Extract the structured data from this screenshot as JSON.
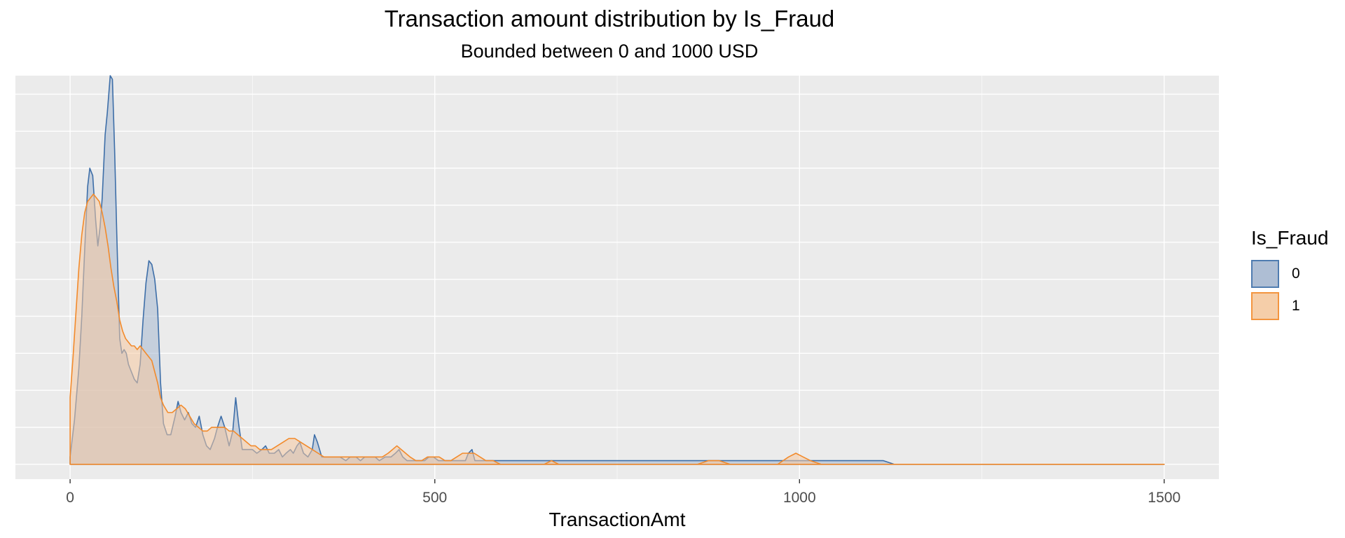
{
  "chart_data": {
    "type": "area",
    "title": "Transaction amount distribution by Is_Fraud",
    "subtitle": "Bounded between 0 and 1000 USD",
    "xlabel": "TransactionAmt",
    "ylabel": "",
    "xlim": [
      -75,
      1575
    ],
    "ylim": [
      -0.0004,
      0.0105
    ],
    "x_ticks": [
      0,
      500,
      1000,
      1500
    ],
    "y_ticks_shown": false,
    "grid": true,
    "legend": {
      "title": "Is_Fraud",
      "position": "right"
    },
    "series": [
      {
        "name": "0",
        "stroke": "#3d6ea8",
        "fill": "#a6b8d0",
        "points": [
          [
            0,
            0.0002
          ],
          [
            6,
            0.0012
          ],
          [
            12,
            0.0026
          ],
          [
            16,
            0.004
          ],
          [
            20,
            0.0058
          ],
          [
            24,
            0.0075
          ],
          [
            27,
            0.008
          ],
          [
            31,
            0.0078
          ],
          [
            35,
            0.0066
          ],
          [
            38,
            0.0059
          ],
          [
            41,
            0.0064
          ],
          [
            44,
            0.0072
          ],
          [
            48,
            0.0089
          ],
          [
            51,
            0.0095
          ],
          [
            55,
            0.0105
          ],
          [
            58,
            0.0104
          ],
          [
            61,
            0.0085
          ],
          [
            64,
            0.0062
          ],
          [
            68,
            0.0034
          ],
          [
            71,
            0.003
          ],
          [
            74,
            0.0031
          ],
          [
            77,
            0.003
          ],
          [
            80,
            0.0027
          ],
          [
            84,
            0.0025
          ],
          [
            88,
            0.0023
          ],
          [
            92,
            0.0022
          ],
          [
            96,
            0.0027
          ],
          [
            100,
            0.0039
          ],
          [
            104,
            0.0049
          ],
          [
            108,
            0.0055
          ],
          [
            112,
            0.0054
          ],
          [
            116,
            0.005
          ],
          [
            120,
            0.0042
          ],
          [
            124,
            0.0022
          ],
          [
            128,
            0.0011
          ],
          [
            133,
            0.0008
          ],
          [
            138,
            0.0008
          ],
          [
            144,
            0.0013
          ],
          [
            148,
            0.0017
          ],
          [
            152,
            0.0014
          ],
          [
            157,
            0.0012
          ],
          [
            162,
            0.0014
          ],
          [
            167,
            0.0011
          ],
          [
            172,
            0.001
          ],
          [
            177,
            0.0013
          ],
          [
            182,
            0.0008
          ],
          [
            187,
            0.0005
          ],
          [
            192,
            0.0004
          ],
          [
            198,
            0.0007
          ],
          [
            202,
            0.001
          ],
          [
            207,
            0.0013
          ],
          [
            212,
            0.001
          ],
          [
            218,
            0.0005
          ],
          [
            223,
            0.0009
          ],
          [
            227,
            0.0018
          ],
          [
            231,
            0.0011
          ],
          [
            236,
            0.0004
          ],
          [
            244,
            0.0004
          ],
          [
            250,
            0.0004
          ],
          [
            256,
            0.0003
          ],
          [
            263,
            0.0004
          ],
          [
            268,
            0.0005
          ],
          [
            273,
            0.0003
          ],
          [
            280,
            0.0003
          ],
          [
            286,
            0.0004
          ],
          [
            291,
            0.0002
          ],
          [
            296,
            0.0003
          ],
          [
            302,
            0.0004
          ],
          [
            306,
            0.0003
          ],
          [
            311,
            0.0005
          ],
          [
            315,
            0.0006
          ],
          [
            320,
            0.0003
          ],
          [
            326,
            0.0002
          ],
          [
            332,
            0.0004
          ],
          [
            335,
            0.0008
          ],
          [
            339,
            0.0006
          ],
          [
            345,
            0.0002
          ],
          [
            352,
            0.0002
          ],
          [
            360,
            0.0002
          ],
          [
            370,
            0.0002
          ],
          [
            378,
            0.0001
          ],
          [
            384,
            0.0002
          ],
          [
            392,
            0.0002
          ],
          [
            398,
            0.0001
          ],
          [
            404,
            0.0002
          ],
          [
            410,
            0.0002
          ],
          [
            418,
            0.0002
          ],
          [
            424,
            0.0001
          ],
          [
            432,
            0.0002
          ],
          [
            440,
            0.0002
          ],
          [
            446,
            0.0003
          ],
          [
            451,
            0.0004
          ],
          [
            456,
            0.0002
          ],
          [
            462,
            0.0001
          ],
          [
            470,
            0.0001
          ],
          [
            478,
            0.0001
          ],
          [
            486,
            0.0001
          ],
          [
            492,
            0.0002
          ],
          [
            498,
            0.0002
          ],
          [
            505,
            0.0001
          ],
          [
            515,
            0.0001
          ],
          [
            525,
            0.0001
          ],
          [
            535,
            0.0001
          ],
          [
            542,
            0.0001
          ],
          [
            546,
            0.0003
          ],
          [
            551,
            0.0004
          ],
          [
            555,
            0.0001
          ],
          [
            562,
            0.0001
          ],
          [
            575,
            0.0001
          ],
          [
            590,
            0.0001
          ],
          [
            610,
            0.0001
          ],
          [
            630,
            0.0001
          ],
          [
            650,
            0.0001
          ],
          [
            660,
            0.0001
          ],
          [
            670,
            0.0001
          ],
          [
            690,
            0.0001
          ],
          [
            710,
            0.0001
          ],
          [
            730,
            0.0001
          ],
          [
            750,
            0.0001
          ],
          [
            770,
            0.0001
          ],
          [
            790,
            0.0001
          ],
          [
            810,
            0.0001
          ],
          [
            830,
            0.0001
          ],
          [
            850,
            0.0001
          ],
          [
            870,
            0.0001
          ],
          [
            890,
            0.0001
          ],
          [
            910,
            0.0001
          ],
          [
            930,
            0.0001
          ],
          [
            950,
            0.0001
          ],
          [
            970,
            0.0001
          ],
          [
            990,
            0.0001
          ],
          [
            1010,
            0.0001
          ],
          [
            1030,
            0.0001
          ],
          [
            1045,
            0.0001
          ],
          [
            1060,
            0.0001
          ],
          [
            1080,
            0.0001
          ],
          [
            1095,
            0.0001
          ],
          [
            1105,
            0.0001
          ],
          [
            1115,
            0.0001
          ],
          [
            1130,
            0.0
          ],
          [
            1150,
            0.0
          ],
          [
            1200,
            0.0
          ],
          [
            1300,
            0.0
          ],
          [
            1400,
            0.0
          ],
          [
            1500,
            0.0
          ]
        ]
      },
      {
        "name": "1",
        "stroke": "#f28a2b",
        "fill": "#f5c9a0",
        "points": [
          [
            0,
            0.0018
          ],
          [
            4,
            0.0029
          ],
          [
            8,
            0.0041
          ],
          [
            12,
            0.0053
          ],
          [
            16,
            0.0062
          ],
          [
            20,
            0.0068
          ],
          [
            24,
            0.0071
          ],
          [
            28,
            0.0072
          ],
          [
            32,
            0.0073
          ],
          [
            36,
            0.0072
          ],
          [
            40,
            0.0071
          ],
          [
            44,
            0.0068
          ],
          [
            48,
            0.0064
          ],
          [
            52,
            0.0059
          ],
          [
            56,
            0.0053
          ],
          [
            60,
            0.0048
          ],
          [
            64,
            0.0044
          ],
          [
            68,
            0.0039
          ],
          [
            72,
            0.0036
          ],
          [
            76,
            0.0034
          ],
          [
            80,
            0.0033
          ],
          [
            84,
            0.0032
          ],
          [
            88,
            0.0032
          ],
          [
            92,
            0.0031
          ],
          [
            96,
            0.0032
          ],
          [
            100,
            0.0031
          ],
          [
            104,
            0.003
          ],
          [
            108,
            0.0029
          ],
          [
            112,
            0.0028
          ],
          [
            116,
            0.0025
          ],
          [
            120,
            0.0022
          ],
          [
            124,
            0.0018
          ],
          [
            128,
            0.0016
          ],
          [
            134,
            0.0014
          ],
          [
            140,
            0.0014
          ],
          [
            146,
            0.0015
          ],
          [
            152,
            0.0016
          ],
          [
            158,
            0.0015
          ],
          [
            164,
            0.0013
          ],
          [
            170,
            0.0011
          ],
          [
            176,
            0.001
          ],
          [
            182,
            0.0009
          ],
          [
            188,
            0.0009
          ],
          [
            194,
            0.001
          ],
          [
            200,
            0.001
          ],
          [
            206,
            0.001
          ],
          [
            212,
            0.001
          ],
          [
            218,
            0.0009
          ],
          [
            224,
            0.0009
          ],
          [
            230,
            0.0008
          ],
          [
            236,
            0.0007
          ],
          [
            242,
            0.0006
          ],
          [
            248,
            0.0005
          ],
          [
            254,
            0.0005
          ],
          [
            260,
            0.0004
          ],
          [
            268,
            0.0004
          ],
          [
            276,
            0.0004
          ],
          [
            284,
            0.0005
          ],
          [
            292,
            0.0006
          ],
          [
            300,
            0.0007
          ],
          [
            308,
            0.0007
          ],
          [
            316,
            0.0006
          ],
          [
            324,
            0.0005
          ],
          [
            332,
            0.0004
          ],
          [
            340,
            0.0003
          ],
          [
            348,
            0.0002
          ],
          [
            356,
            0.0002
          ],
          [
            364,
            0.0002
          ],
          [
            372,
            0.0002
          ],
          [
            380,
            0.0002
          ],
          [
            388,
            0.0002
          ],
          [
            396,
            0.0002
          ],
          [
            404,
            0.0002
          ],
          [
            412,
            0.0002
          ],
          [
            420,
            0.0002
          ],
          [
            428,
            0.0002
          ],
          [
            436,
            0.0003
          ],
          [
            442,
            0.0004
          ],
          [
            448,
            0.0005
          ],
          [
            454,
            0.0004
          ],
          [
            460,
            0.0003
          ],
          [
            466,
            0.0002
          ],
          [
            474,
            0.0001
          ],
          [
            482,
            0.0001
          ],
          [
            490,
            0.0002
          ],
          [
            498,
            0.0002
          ],
          [
            506,
            0.0002
          ],
          [
            514,
            0.0001
          ],
          [
            522,
            0.0001
          ],
          [
            530,
            0.0002
          ],
          [
            538,
            0.0003
          ],
          [
            546,
            0.0003
          ],
          [
            554,
            0.0003
          ],
          [
            562,
            0.0002
          ],
          [
            570,
            0.0001
          ],
          [
            580,
            0.0001
          ],
          [
            590,
            0.0
          ],
          [
            610,
            0.0
          ],
          [
            630,
            0.0
          ],
          [
            650,
            0.0
          ],
          [
            660,
            0.0001
          ],
          [
            670,
            0.0
          ],
          [
            700,
            0.0
          ],
          [
            740,
            0.0
          ],
          [
            780,
            0.0
          ],
          [
            820,
            0.0
          ],
          [
            860,
            0.0
          ],
          [
            875,
            0.0001
          ],
          [
            890,
            0.0001
          ],
          [
            905,
            0.0
          ],
          [
            940,
            0.0
          ],
          [
            970,
            0.0
          ],
          [
            985,
            0.0002
          ],
          [
            995,
            0.0003
          ],
          [
            1005,
            0.0002
          ],
          [
            1015,
            0.0001
          ],
          [
            1030,
            0.0
          ],
          [
            1060,
            0.0
          ],
          [
            1100,
            0.0
          ],
          [
            1150,
            0.0
          ],
          [
            1200,
            0.0
          ],
          [
            1300,
            0.0
          ],
          [
            1350,
            0.0
          ],
          [
            1400,
            0.0
          ],
          [
            1500,
            0.0
          ]
        ]
      }
    ]
  }
}
